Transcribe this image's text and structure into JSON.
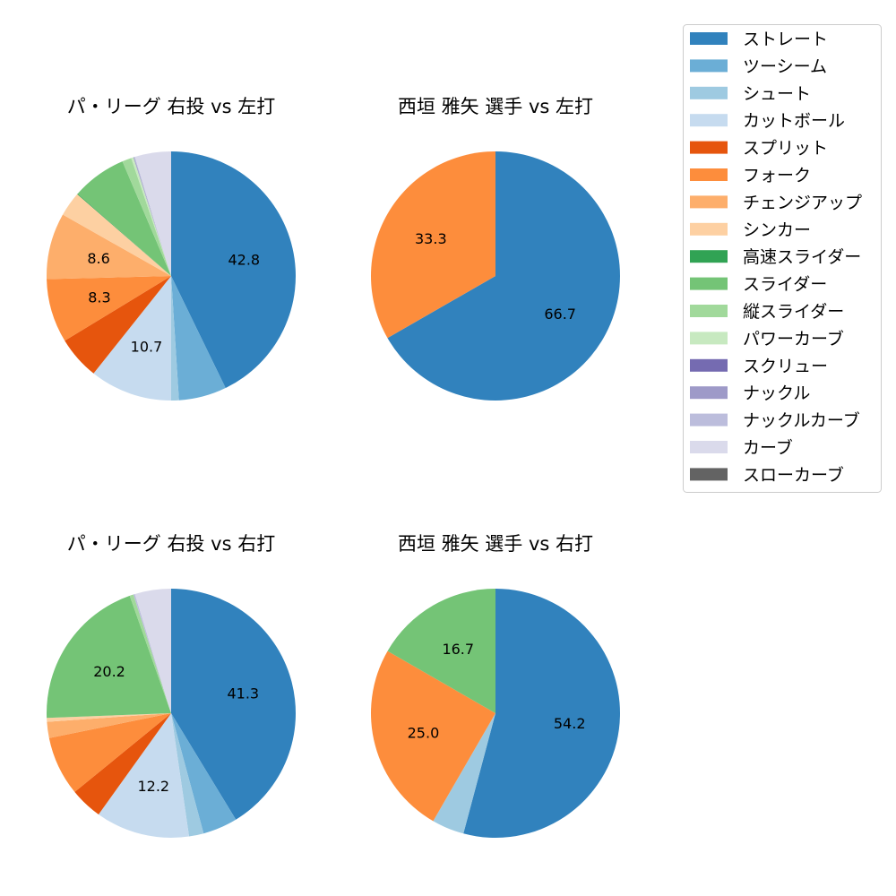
{
  "chart_data": [
    {
      "type": "pie",
      "title": "パ・リーグ 右投 vs 左打",
      "labels": [
        "ストレート",
        "ツーシーム",
        "シュート",
        "カットボール",
        "スプリット",
        "フォーク",
        "チェンジアップ",
        "シンカー",
        "高速スライダー",
        "スライダー",
        "縦スライダー",
        "パワーカーブ",
        "スクリュー",
        "ナックル",
        "ナックルカーブ",
        "カーブ",
        "スローカーブ"
      ],
      "values": [
        42.8,
        6.2,
        1.0,
        10.7,
        5.6,
        8.3,
        8.6,
        3.2,
        0.1,
        7.1,
        1.2,
        0.3,
        0,
        0.1,
        0.1,
        4.7,
        0
      ],
      "data_labels": [
        "42.8",
        "",
        "",
        "10.7",
        "",
        "8.3",
        "8.6",
        "",
        "",
        "",
        "",
        "",
        "",
        "",
        "",
        "",
        ""
      ]
    },
    {
      "type": "pie",
      "title": "西垣 雅矢 選手 vs 左打",
      "labels": [
        "ストレート",
        "ツーシーム",
        "シュート",
        "カットボール",
        "スプリット",
        "フォーク",
        "チェンジアップ",
        "シンカー",
        "高速スライダー",
        "スライダー",
        "縦スライダー",
        "パワーカーブ",
        "スクリュー",
        "ナックル",
        "ナックルカーブ",
        "カーブ",
        "スローカーブ"
      ],
      "values": [
        66.7,
        0,
        0,
        0,
        0,
        33.3,
        0,
        0,
        0,
        0,
        0,
        0,
        0,
        0,
        0,
        0,
        0
      ],
      "data_labels": [
        "66.7",
        "",
        "",
        "",
        "",
        "33.3",
        "",
        "",
        "",
        "",
        "",
        "",
        "",
        "",
        "",
        "",
        ""
      ]
    },
    {
      "type": "pie",
      "title": "パ・リーグ 右投 vs 右打",
      "labels": [
        "ストレート",
        "ツーシーム",
        "シュート",
        "カットボール",
        "スプリット",
        "フォーク",
        "チェンジアップ",
        "シンカー",
        "高速スライダー",
        "スライダー",
        "縦スライダー",
        "パワーカーブ",
        "スクリュー",
        "ナックル",
        "ナックルカーブ",
        "カーブ",
        "スローカーブ"
      ],
      "values": [
        41.3,
        4.5,
        1.9,
        12.2,
        4.2,
        7.7,
        2.1,
        0.5,
        0,
        20.2,
        0.5,
        0,
        0,
        0,
        0.2,
        4.7,
        0
      ],
      "data_labels": [
        "41.3",
        "",
        "",
        "12.2",
        "",
        "",
        "",
        "",
        "",
        "20.2",
        "",
        "",
        "",
        "",
        "",
        "",
        ""
      ]
    },
    {
      "type": "pie",
      "title": "西垣 雅矢 選手 vs 右打",
      "labels": [
        "ストレート",
        "ツーシーム",
        "シュート",
        "カットボール",
        "スプリット",
        "フォーク",
        "チェンジアップ",
        "シンカー",
        "高速スライダー",
        "スライダー",
        "縦スライダー",
        "パワーカーブ",
        "スクリュー",
        "ナックル",
        "ナックルカーブ",
        "カーブ",
        "スローカーブ"
      ],
      "values": [
        54.2,
        0,
        4.2,
        0,
        0,
        25.0,
        0,
        0,
        0,
        16.7,
        0,
        0,
        0,
        0,
        0,
        0,
        0
      ],
      "data_labels": [
        "54.2",
        "",
        "",
        "",
        "",
        "25.0",
        "",
        "",
        "",
        "16.7",
        "",
        "",
        "",
        "",
        "",
        "",
        ""
      ]
    }
  ],
  "legend": {
    "placement": "top-right",
    "entries": [
      "ストレート",
      "ツーシーム",
      "シュート",
      "カットボール",
      "スプリット",
      "フォーク",
      "チェンジアップ",
      "シンカー",
      "高速スライダー",
      "スライダー",
      "縦スライダー",
      "パワーカーブ",
      "スクリュー",
      "ナックル",
      "ナックルカーブ",
      "カーブ",
      "スローカーブ"
    ],
    "colors": [
      "#3182bd",
      "#6baed6",
      "#9ecae1",
      "#c6dbef",
      "#e6550d",
      "#fd8d3c",
      "#fdae6b",
      "#fdd0a2",
      "#31a354",
      "#74c476",
      "#a1d99b",
      "#c7e9c0",
      "#756bb1",
      "#9e9ac8",
      "#bcbddc",
      "#dadaeb",
      "#636363"
    ]
  }
}
